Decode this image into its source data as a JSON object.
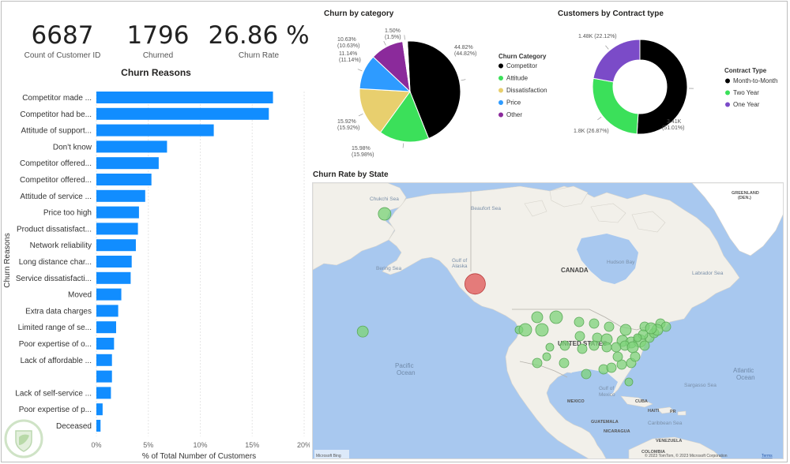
{
  "kpis": [
    {
      "value": "6687",
      "label": "Count of Customer ID"
    },
    {
      "value": "1796",
      "label": "Churned"
    },
    {
      "value": "26.86 %",
      "label": "Churn Rate"
    }
  ],
  "reasons_chart": {
    "title": "Churn Reasons",
    "ylabel": "Churn Reasons",
    "xlabel": "% of Total Number of Customers",
    "bar_color": "#118DFF"
  },
  "category_chart": {
    "title": "Churn by category",
    "legend_title": "Churn Category"
  },
  "contract_chart": {
    "title": "Customers by Contract type",
    "legend_title": "Contract Type"
  },
  "map": {
    "title": "Churn Rate by State",
    "labels": {
      "chukchi": "Chukchi Sea",
      "beaufort": "Beaufort Sea",
      "gulf_alaska_1": "Gulf of",
      "gulf_alaska_2": "Alaska",
      "bering": "Bering Sea",
      "hudson": "Hudson Bay",
      "canada": "CANADA",
      "labrador": "Labrador Sea",
      "greenland_1": "GREENLAND",
      "greenland_2": "(DEN.)",
      "us": "UNITED STATES",
      "pacific_1": "Pacific",
      "pacific_2": "Ocean",
      "atlantic_1": "Atlantic",
      "atlantic_2": "Ocean",
      "sargasso": "Sargasso Sea",
      "gulf_mexico_1": "Gulf of",
      "gulf_mexico_2": "Mexico",
      "mexico": "MEXICO",
      "cuba": "CUBA",
      "haiti": "HAITI",
      "pr": "PR",
      "guatemala": "GUATEMALA",
      "nicaragua": "NICARAGUA",
      "caribbean": "Caribbean Sea",
      "venezuela": "VENEZUELA",
      "colombia": "COLOMBIA",
      "bing": "Microsoft Bing",
      "copyright": "© 2023 TomTom, © 2023 Microsoft Corporation",
      "terms": "Terms"
    }
  },
  "chart_data": [
    {
      "type": "bar",
      "orientation": "horizontal",
      "title": "Churn Reasons",
      "xlabel": "% of Total Number of Customers",
      "ylabel": "Churn Reasons",
      "categories": [
        "Competitor made ...",
        "Competitor had be...",
        "Attitude of support...",
        "Don't know",
        "Competitor offered...",
        "Competitor offered...",
        "Attitude of service ...",
        "Price too high",
        "Product dissatisfact...",
        "Network reliability",
        "Long distance char...",
        "Service dissatisfacti...",
        "Moved",
        "Extra data charges",
        "Limited range of se...",
        "Poor expertise of o...",
        "Lack of affordable ...",
        "",
        "Lack of self-service ...",
        "Poor expertise of p...",
        "Deceased"
      ],
      "values": [
        17.0,
        16.6,
        11.3,
        6.8,
        6.0,
        5.3,
        4.7,
        4.1,
        4.0,
        3.8,
        3.4,
        3.3,
        2.4,
        2.1,
        1.9,
        1.7,
        1.5,
        1.5,
        1.4,
        0.6,
        0.4
      ],
      "ticks": [
        "0%",
        "5%",
        "10%",
        "15%",
        "20%"
      ],
      "xlim": [
        0,
        20
      ]
    },
    {
      "type": "pie",
      "title": "Churn by category",
      "legend_title": "Churn Category",
      "slices": [
        {
          "label": "Competitor",
          "value": 44.82,
          "text": "44.82% (44.82%)",
          "color": "#000000"
        },
        {
          "label": "Attitude",
          "value": 15.98,
          "text": "15.98% (15.98%)",
          "color": "#3BE05A"
        },
        {
          "label": "Dissatisfaction",
          "value": 15.92,
          "text": "15.92% (15.92%)",
          "color": "#E8CF6E"
        },
        {
          "label": "Price",
          "value": 11.14,
          "text": "11.14% (11.14%)",
          "color": "#2E9BFF"
        },
        {
          "label": "Other",
          "value": 10.63,
          "text": "10.63% (10.63%)",
          "color": "#8B2A9B"
        },
        {
          "label": "",
          "value": 1.5,
          "text": "1.50% (1.5%)",
          "color": "#ffffff"
        }
      ]
    },
    {
      "type": "pie",
      "variant": "donut",
      "title": "Customers by Contract type",
      "legend_title": "Contract Type",
      "slices": [
        {
          "label": "Month-to-Month",
          "value": 51.01,
          "text": "3.41K (51.01%)",
          "color": "#000000"
        },
        {
          "label": "Two Year",
          "value": 26.87,
          "text": "1.8K (26.87%)",
          "color": "#3BE05A"
        },
        {
          "label": "One Year",
          "value": 22.12,
          "text": "1.48K (22.12%)",
          "color": "#7B4BC8"
        }
      ]
    },
    {
      "type": "scatter",
      "variant": "bubble-map",
      "title": "Churn Rate by State",
      "bubbles": [
        {
          "lon": -150,
          "lat": 62,
          "r": 8,
          "color": "#7ED37A"
        },
        {
          "lon": -157,
          "lat": 20,
          "r": 7,
          "color": "#7ED37A"
        },
        {
          "lon": -121,
          "lat": 37,
          "r": 13,
          "color": "#E05A5A"
        }
      ]
    }
  ]
}
